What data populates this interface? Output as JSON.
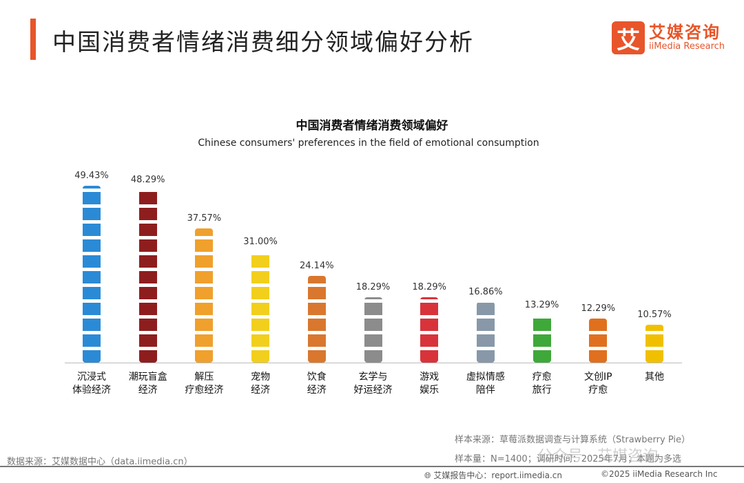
{
  "header": {
    "title": "中国消费者情绪消费细分领域偏好分析",
    "logo_mark": "艾",
    "logo_cn": "艾媒咨询",
    "logo_en": "iiMedia Research"
  },
  "chart_data": {
    "type": "bar",
    "title": "中国消费者情绪消费领域偏好",
    "subtitle": "Chinese consumers' preferences in the field of emotional consumption",
    "categories": [
      "沉浸式\n体验经济",
      "潮玩盲盒\n经济",
      "解压\n疗愈经济",
      "宠物\n经济",
      "饮食\n经济",
      "玄学与\n好运经济",
      "游戏\n娱乐",
      "虚拟情感\n陪伴",
      "疗愈\n旅行",
      "文创IP\n疗愈",
      "其他"
    ],
    "values": [
      49.43,
      48.29,
      37.57,
      31.0,
      24.14,
      18.29,
      18.29,
      16.86,
      13.29,
      12.29,
      10.57
    ],
    "labels": [
      "49.43%",
      "48.29%",
      "37.57%",
      "31.00%",
      "24.14%",
      "18.29%",
      "18.29%",
      "16.86%",
      "13.29%",
      "12.29%",
      "10.57%"
    ],
    "icons": [
      "microphone-icon",
      "blind-box-icon",
      "doll-icon",
      "cat-icon",
      "food-bowl-icon",
      "pagoda-icon",
      "game-console-icon",
      "robot-icon",
      "tree-icon",
      "palace-icon",
      "question-mark-icon"
    ],
    "colors": [
      "#2b8ad6",
      "#8e1e1e",
      "#f0a02c",
      "#f2cf1c",
      "#d9772e",
      "#8c8c8c",
      "#d8333a",
      "#8898a8",
      "#3fa83a",
      "#e0701e",
      "#f0c000"
    ],
    "ylim": [
      0,
      50
    ],
    "grid": false
  },
  "footer": {
    "source_left": "数据来源：艾媒数据中心（data.iimedia.cn）",
    "sample_source": "样本来源：草莓派数据调查与计算系统（Strawberry Pie）",
    "sample_size": "样本量：N=1400；调研时间：2025年7月；本题为多选",
    "report_center": "艾媒报告中心：report.iimedia.cn",
    "copyright": "©2025  iiMedia Research  Inc",
    "watermark": "公众号 · 艾媒咨询"
  }
}
